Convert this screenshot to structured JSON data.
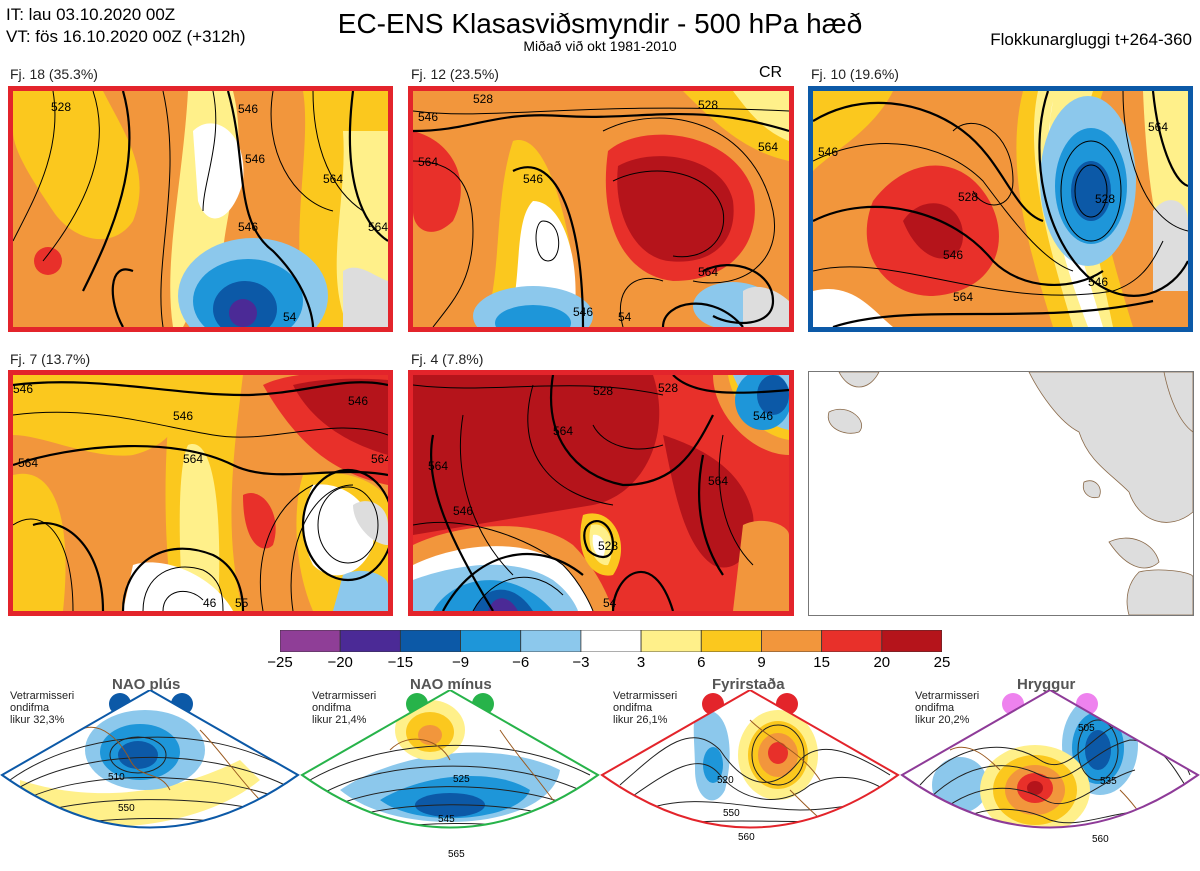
{
  "header": {
    "init_time": "IT: lau 03.10.2020 00Z",
    "valid_time": "VT: fös 16.10.2020 00Z  (+312h)",
    "title": "EC-ENS Klasasviðsmyndir - 500 hPa hæð",
    "subtitle": "Miðað við okt 1981-2010",
    "window": "Flokkunargluggi t+264-360"
  },
  "clusters": [
    {
      "label": "Fj. 18 (35.3%)",
      "frame_color": "#e3242b",
      "contours": [
        "528",
        "546",
        "546",
        "564",
        "564",
        "546",
        "54"
      ]
    },
    {
      "label": "Fj. 12 (23.5%)",
      "frame_color": "#e3242b",
      "tag": "CR",
      "contours": [
        "528",
        "528",
        "546",
        "564",
        "564",
        "546",
        "546",
        "564",
        "54"
      ]
    },
    {
      "label": "Fj. 10 (19.6%)",
      "frame_color": "#0c59a7",
      "contours": [
        "528",
        "528",
        "546",
        "546",
        "546",
        "564",
        "564"
      ]
    },
    {
      "label": "Fj. 7 (13.7%)",
      "frame_color": "#e3242b",
      "contours": [
        "546",
        "546",
        "564",
        "564",
        "564",
        "546",
        "46",
        "55"
      ]
    },
    {
      "label": "Fj. 4 (7.8%)",
      "frame_color": "#e3242b",
      "contours": [
        "528",
        "546",
        "564",
        "528",
        "564",
        "528",
        "546",
        "564",
        "54"
      ]
    }
  ],
  "colorbar": {
    "ticks": [
      "−25",
      "−20",
      "−15",
      "−9",
      "−6",
      "−3",
      "3",
      "6",
      "9",
      "15",
      "20",
      "25"
    ],
    "colors": [
      "#8f3e97",
      "#4b2a96",
      "#0c59a7",
      "#1e96d9",
      "#8cc8ec",
      "#ffffff",
      "#fff08a",
      "#fbc81e",
      "#f2963c",
      "#e8302a",
      "#b5141b"
    ]
  },
  "regimes": [
    {
      "name": "NAO plús",
      "note": [
        "Vetrarmisseri",
        "ondifma",
        "likur 32,3%"
      ],
      "dot_color": "#0c59a7",
      "frame_color": "#0c59a7",
      "contours": [
        "510",
        "550"
      ]
    },
    {
      "name": "NAO mínus",
      "note": [
        "Vetrarmisseri",
        "ondifma",
        "likur 21,4%"
      ],
      "dot_color": "#27b34a",
      "frame_color": "#27b34a",
      "contours": [
        "525",
        "545",
        "565"
      ]
    },
    {
      "name": "Fyrirstaða",
      "note": [
        "Vetrarmisseri",
        "ondifma",
        "likur 26,1%"
      ],
      "dot_color": "#e3242b",
      "frame_color": "#e3242b",
      "contours": [
        "520",
        "550",
        "560"
      ]
    },
    {
      "name": "Hryggur",
      "note": [
        "Vetrarmisseri",
        "ondifma",
        "likur 20,2%"
      ],
      "dot_color": "#ee82ee",
      "frame_color": "#8e3b98",
      "contours": [
        "505",
        "535",
        "560"
      ]
    }
  ]
}
